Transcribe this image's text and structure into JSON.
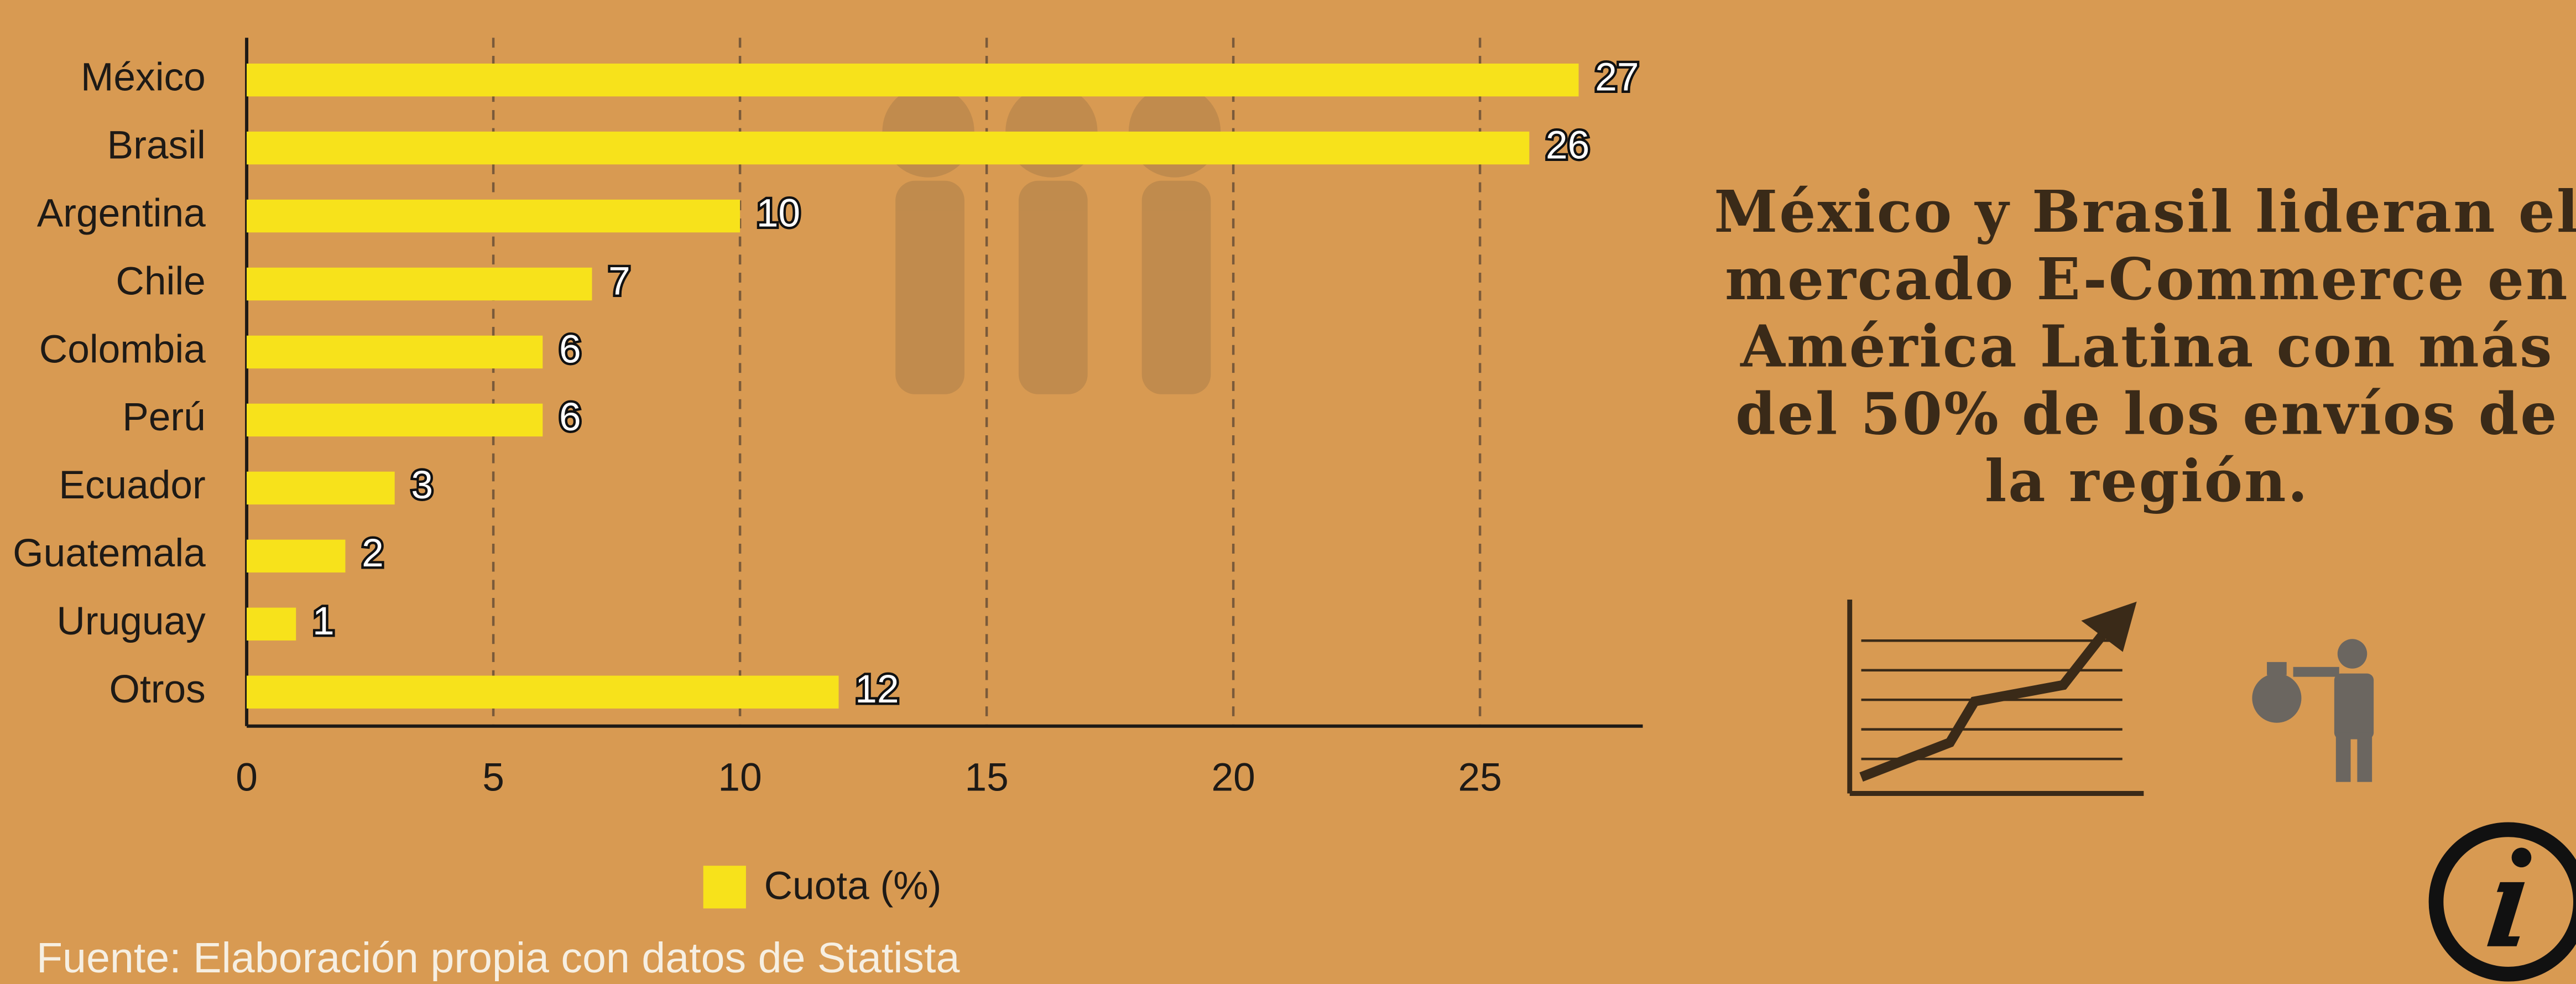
{
  "chart_data": {
    "type": "bar",
    "orientation": "horizontal",
    "categories": [
      "México",
      "Brasil",
      "Argentina",
      "Chile",
      "Colombia",
      "Perú",
      "Ecuador",
      "Guatemala",
      "Uruguay",
      "Otros"
    ],
    "series": [
      {
        "name": "Cuota (%)",
        "color": "#f7e21b",
        "values": [
          27,
          26,
          10,
          7,
          6,
          6,
          3,
          2,
          1,
          12
        ]
      }
    ],
    "xlim": [
      0,
      28.3
    ],
    "xticks": [
      0,
      5,
      10,
      15,
      20,
      25
    ],
    "grid": true,
    "annotation": [
      "México y Brasil lideran el",
      "mercado E-Commerce en",
      "América Latina con más",
      "del 50% de los envíos de",
      "la región."
    ],
    "source": "Fuente: Elaboración propia con datos de Statista"
  }
}
